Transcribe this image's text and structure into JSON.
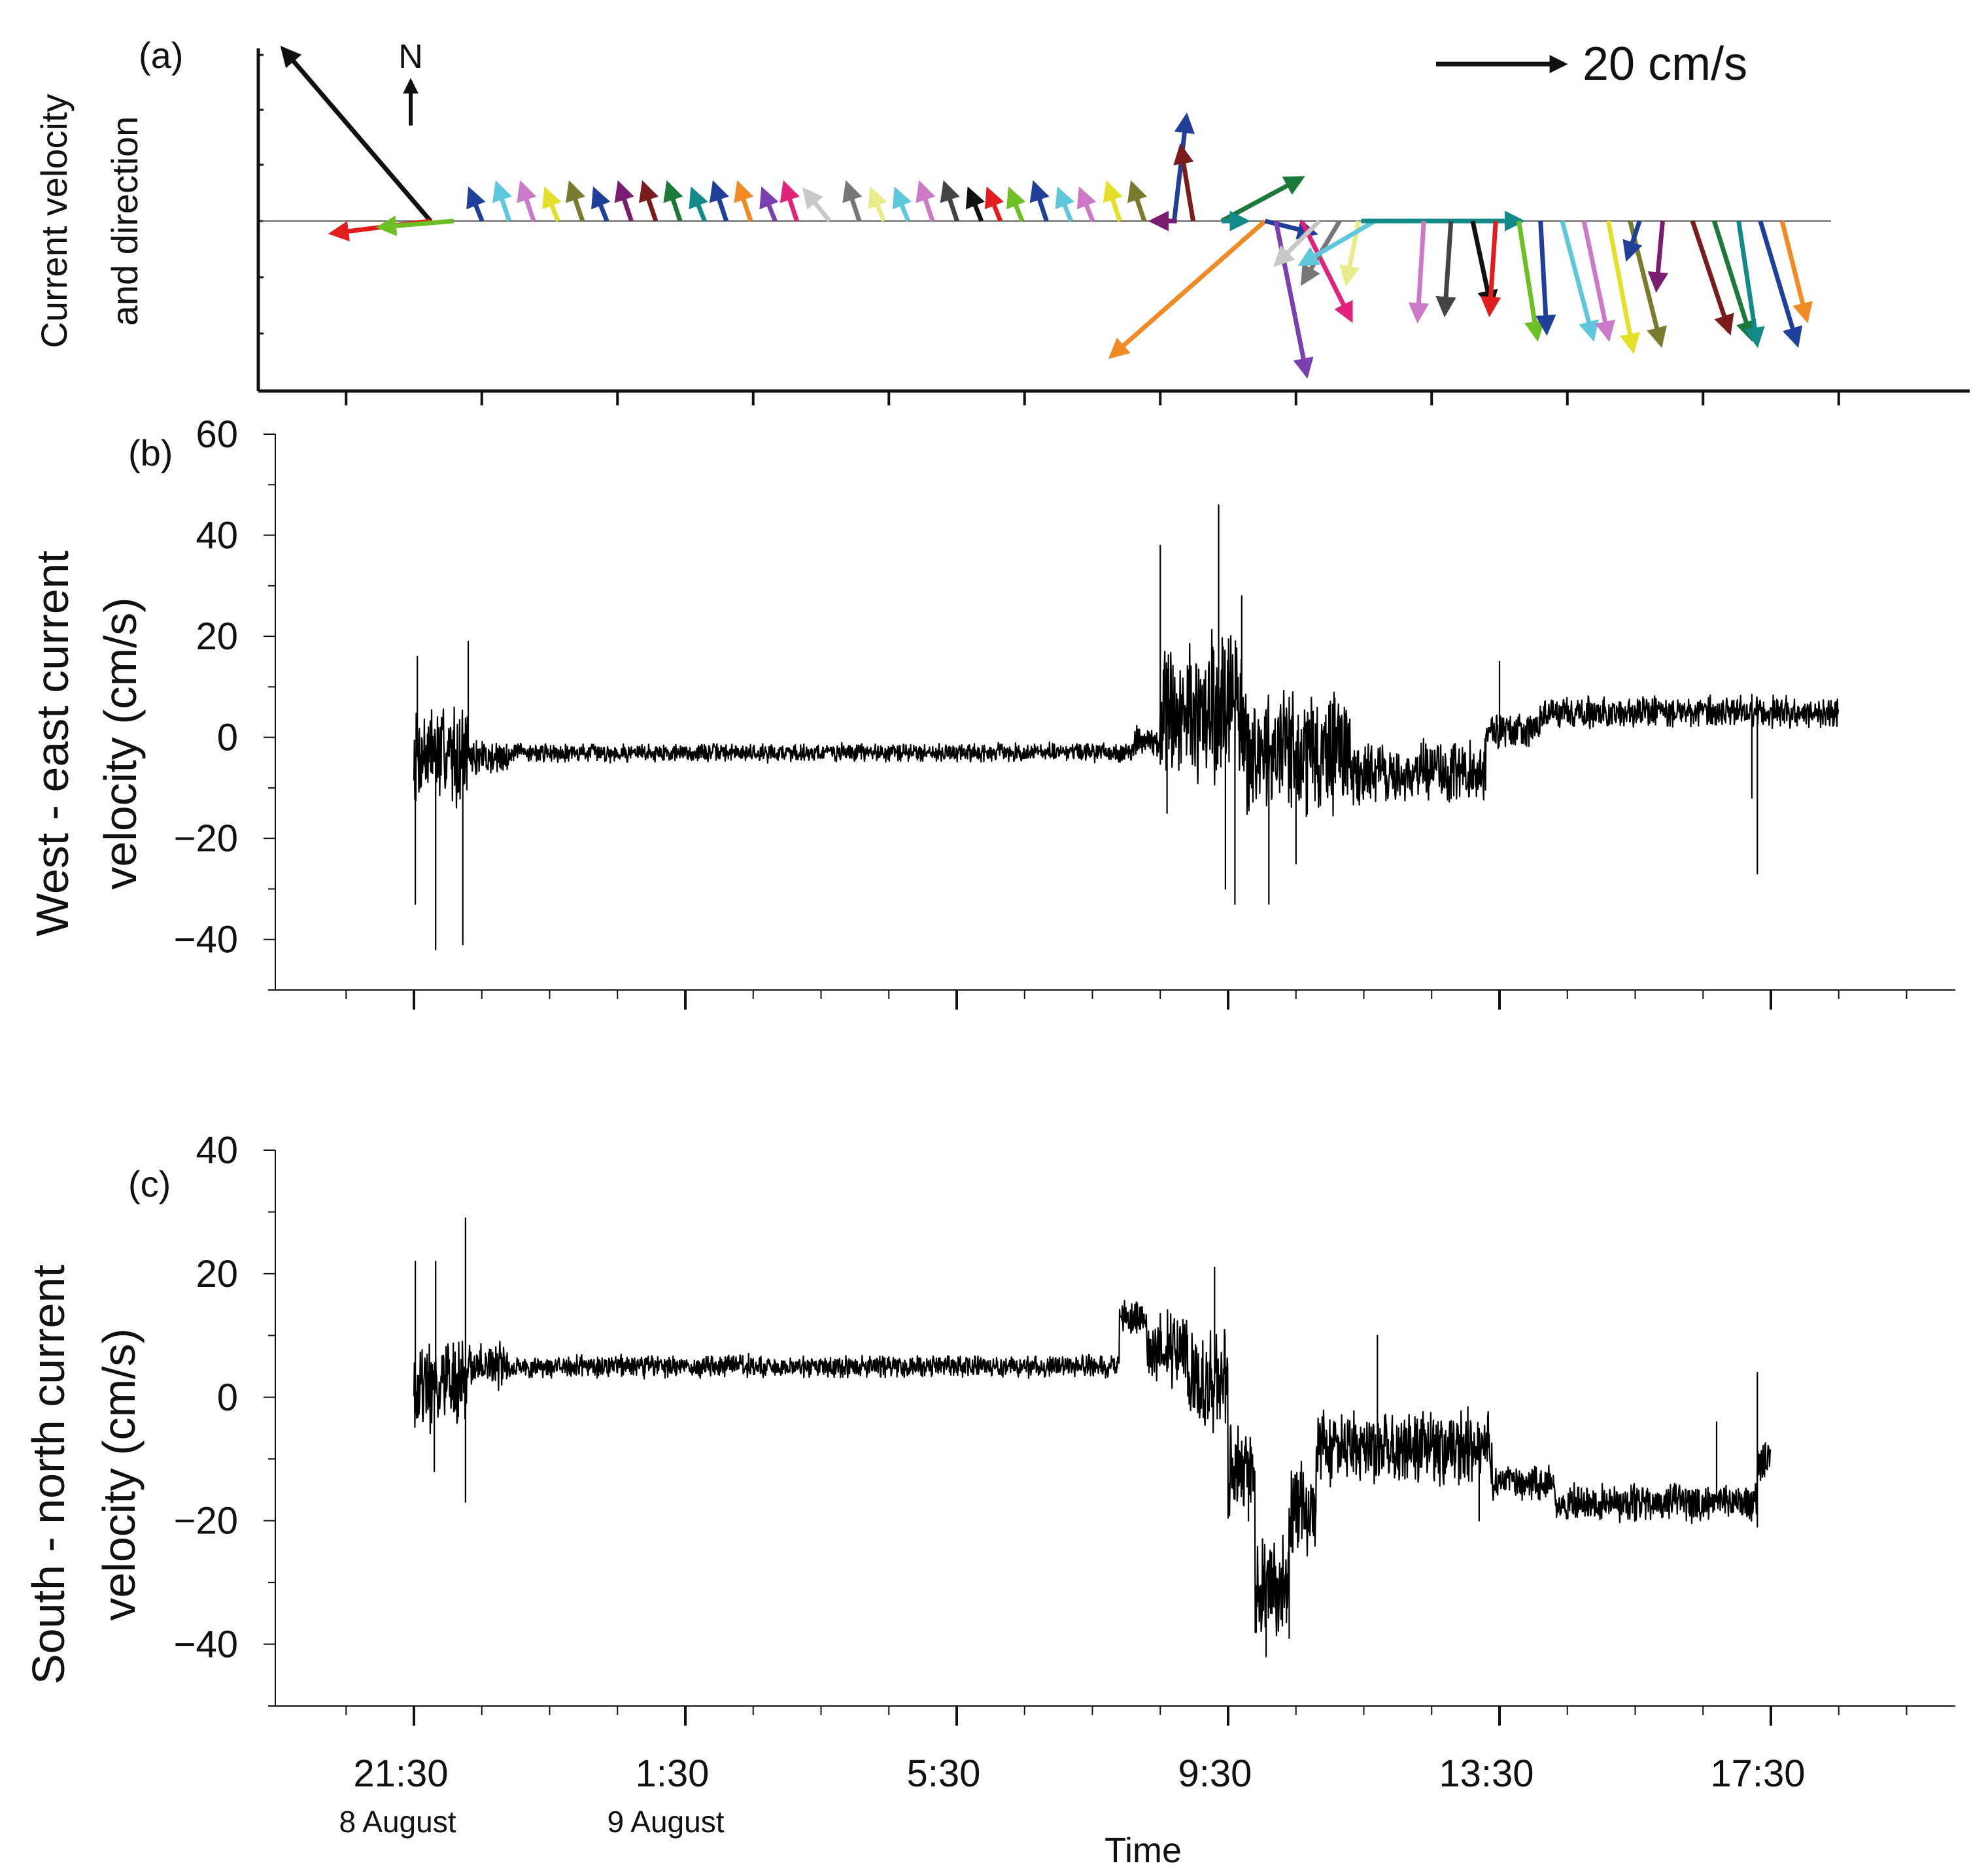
{
  "chart_data": [
    {
      "panel": "(a)",
      "type": "vector",
      "ylabel_lines": [
        "Current velocity",
        "and direction"
      ],
      "north_label": "N",
      "scale_label": "20 cm/s",
      "scale_value": 20,
      "vectors": [
        {
          "t": 0.1,
          "u": -24,
          "v": 28,
          "c": "#111111"
        },
        {
          "t": 0.1,
          "u": -16,
          "v": -2,
          "c": "#e11d1d"
        },
        {
          "t": 0.44,
          "u": -12,
          "v": -1,
          "c": "#6cc024"
        },
        {
          "t": 0.86,
          "u": -2,
          "v": 5,
          "c": "#1f3f99"
        },
        {
          "t": 1.26,
          "u": -2,
          "v": 6,
          "c": "#5fc7dc"
        },
        {
          "t": 1.62,
          "u": -2,
          "v": 6,
          "c": "#cc79c8"
        },
        {
          "t": 1.98,
          "u": -2,
          "v": 5,
          "c": "#e4e02a"
        },
        {
          "t": 2.34,
          "u": -2,
          "v": 6,
          "c": "#7b7b2f"
        },
        {
          "t": 2.7,
          "u": -2,
          "v": 5,
          "c": "#1f3f99"
        },
        {
          "t": 3.06,
          "u": -2,
          "v": 6,
          "c": "#7a1c6f"
        },
        {
          "t": 3.42,
          "u": -2,
          "v": 6,
          "c": "#7a1c1c"
        },
        {
          "t": 3.78,
          "u": -2,
          "v": 6,
          "c": "#1b7a3a"
        },
        {
          "t": 4.14,
          "u": -2,
          "v": 5,
          "c": "#138a8a"
        },
        {
          "t": 4.46,
          "u": -2,
          "v": 6,
          "c": "#1f3f99"
        },
        {
          "t": 4.82,
          "u": -2,
          "v": 6,
          "c": "#f08a24"
        },
        {
          "t": 5.18,
          "u": -2,
          "v": 5,
          "c": "#7b3fb0"
        },
        {
          "t": 5.5,
          "u": -2,
          "v": 6,
          "c": "#e2217a"
        },
        {
          "t": 5.98,
          "u": -4,
          "v": 5,
          "c": "#c8c8c8"
        },
        {
          "t": 6.42,
          "u": -2,
          "v": 6,
          "c": "#777777"
        },
        {
          "t": 6.78,
          "u": -2,
          "v": 5,
          "c": "#e8ec8a"
        },
        {
          "t": 7.14,
          "u": -2,
          "v": 5,
          "c": "#5fc7dc"
        },
        {
          "t": 7.5,
          "u": -2,
          "v": 6,
          "c": "#cc79c8"
        },
        {
          "t": 7.86,
          "u": -2,
          "v": 6,
          "c": "#444444"
        },
        {
          "t": 8.22,
          "u": -2,
          "v": 5,
          "c": "#111111"
        },
        {
          "t": 8.5,
          "u": -2,
          "v": 5,
          "c": "#e11d1d"
        },
        {
          "t": 8.82,
          "u": -2,
          "v": 5,
          "c": "#6cc024"
        },
        {
          "t": 9.18,
          "u": -2,
          "v": 6,
          "c": "#1f3f99"
        },
        {
          "t": 9.54,
          "u": -2,
          "v": 5,
          "c": "#5fc7dc"
        },
        {
          "t": 9.86,
          "u": -2,
          "v": 5,
          "c": "#cc79c8"
        },
        {
          "t": 10.26,
          "u": -2,
          "v": 6,
          "c": "#e4e02a"
        },
        {
          "t": 10.62,
          "u": -2,
          "v": 6,
          "c": "#7b7b2f"
        },
        {
          "t": 11.06,
          "u": 2,
          "v": 17,
          "c": "#1f3f99"
        },
        {
          "t": 11.1,
          "u": -4,
          "v": 0,
          "c": "#7a1c6f"
        },
        {
          "t": 11.34,
          "u": -2,
          "v": 12,
          "c": "#7a1c1c"
        },
        {
          "t": 11.76,
          "u": 13,
          "v": 7,
          "c": "#1b7a3a"
        },
        {
          "t": 11.76,
          "u": 4,
          "v": 0,
          "c": "#138a8a"
        },
        {
          "t": 12.4,
          "u": -25,
          "v": -22,
          "c": "#f08a24"
        },
        {
          "t": 12.4,
          "u": 8,
          "v": -2,
          "c": "#1f3f99"
        },
        {
          "t": 12.56,
          "u": 5,
          "v": -25,
          "c": "#7b3fb0"
        },
        {
          "t": 12.94,
          "u": 8,
          "v": -16,
          "c": "#e2217a"
        },
        {
          "t": 13.2,
          "u": -7,
          "v": -7,
          "c": "#c8c8c8"
        },
        {
          "t": 13.5,
          "u": -6,
          "v": -10,
          "c": "#777777"
        },
        {
          "t": 13.78,
          "u": -2,
          "v": -10,
          "c": "#e8ec8a"
        },
        {
          "t": 14.02,
          "u": -12,
          "v": -7,
          "c": "#5fc7dc"
        },
        {
          "t": 13.82,
          "u": 26,
          "v": 0,
          "c": "#138a8a"
        },
        {
          "t": 14.74,
          "u": -1,
          "v": -16,
          "c": "#cc79c8"
        },
        {
          "t": 15.14,
          "u": -1,
          "v": -15,
          "c": "#444444"
        },
        {
          "t": 15.46,
          "u": 3,
          "v": -14,
          "c": "#111111"
        },
        {
          "t": 15.8,
          "u": -1,
          "v": -15,
          "c": "#e11d1d"
        },
        {
          "t": 16.14,
          "u": 3,
          "v": -19,
          "c": "#6cc024"
        },
        {
          "t": 16.46,
          "u": 1,
          "v": -18,
          "c": "#1f3f99"
        },
        {
          "t": 16.78,
          "u": 5,
          "v": -19,
          "c": "#5fc7dc"
        },
        {
          "t": 17.1,
          "u": 4,
          "v": -19,
          "c": "#cc79c8"
        },
        {
          "t": 17.46,
          "u": 4,
          "v": -21,
          "c": "#e4e02a"
        },
        {
          "t": 17.78,
          "u": 5,
          "v": -20,
          "c": "#7b7b2f"
        },
        {
          "t": 17.92,
          "u": -2,
          "v": -6,
          "c": "#1f3f99"
        },
        {
          "t": 18.26,
          "u": -1,
          "v": -11,
          "c": "#7a1c6f"
        },
        {
          "t": 18.7,
          "u": 6,
          "v": -18,
          "c": "#7a1c1c"
        },
        {
          "t": 19.02,
          "u": 6,
          "v": -19,
          "c": "#1b7a3a"
        },
        {
          "t": 19.38,
          "u": 3,
          "v": -20,
          "c": "#138a8a"
        },
        {
          "t": 19.7,
          "u": 6,
          "v": -20,
          "c": "#1f3f99"
        },
        {
          "t": 20.02,
          "u": 4,
          "v": -16,
          "c": "#f08a24"
        }
      ]
    },
    {
      "panel": "(b)",
      "type": "line",
      "ylabel_lines": [
        "West - east current",
        "velocity (cm/s)"
      ],
      "ylim": [
        -50,
        60
      ],
      "yticks": [
        -40,
        -20,
        0,
        20,
        40,
        60
      ],
      "ytick_labels": [
        "−40",
        "−20",
        "0",
        "20",
        "40",
        "60"
      ],
      "segments": [
        {
          "t0": 0.0,
          "t1": 0.8,
          "base": -3,
          "noise": 8
        },
        {
          "t0": 0.8,
          "t1": 1.4,
          "base": -4,
          "noise": 3
        },
        {
          "t0": 1.4,
          "t1": 10.6,
          "base": -3,
          "noise": 1.5
        },
        {
          "t0": 10.6,
          "t1": 11.0,
          "base": -1,
          "noise": 2.5
        },
        {
          "t0": 11.0,
          "t1": 12.2,
          "base": 5,
          "noise": 12
        },
        {
          "t0": 12.2,
          "t1": 13.8,
          "base": -3,
          "noise": 10
        },
        {
          "t0": 13.8,
          "t1": 15.8,
          "base": -7,
          "noise": 5
        },
        {
          "t0": 15.8,
          "t1": 16.6,
          "base": 1,
          "noise": 3
        },
        {
          "t0": 16.6,
          "t1": 21.0,
          "base": 5,
          "noise": 2.5
        }
      ],
      "spikes": [
        {
          "t": 0.02,
          "v": -33
        },
        {
          "t": 0.05,
          "v": 16
        },
        {
          "t": 0.32,
          "v": -42
        },
        {
          "t": 0.72,
          "v": -41
        },
        {
          "t": 0.8,
          "v": 19
        },
        {
          "t": 11.0,
          "v": 38
        },
        {
          "t": 11.1,
          "v": -15
        },
        {
          "t": 11.86,
          "v": 46
        },
        {
          "t": 11.96,
          "v": -30
        },
        {
          "t": 12.1,
          "v": -33
        },
        {
          "t": 12.2,
          "v": 28
        },
        {
          "t": 12.6,
          "v": -33
        },
        {
          "t": 13.0,
          "v": -25
        },
        {
          "t": 14.1,
          "v": -12
        },
        {
          "t": 16.0,
          "v": 15
        },
        {
          "t": 19.8,
          "v": -27
        },
        {
          "t": 19.72,
          "v": -12
        }
      ]
    },
    {
      "panel": "(c)",
      "type": "line",
      "ylabel_lines": [
        "South - north current",
        "velocity (cm/s)"
      ],
      "ylim": [
        -50,
        40
      ],
      "yticks": [
        -40,
        -20,
        0,
        20,
        40
      ],
      "ytick_labels": [
        "−40",
        "−20",
        "0",
        "20",
        "40"
      ],
      "xlabel": "Time",
      "xtick_labels": [
        "21:30",
        "1:30",
        "5:30",
        "9:30",
        "13:30",
        "17:30"
      ],
      "date_labels": [
        "8 August",
        "9 August"
      ],
      "segments": [
        {
          "t0": 0.0,
          "t1": 0.8,
          "base": 2,
          "noise": 6
        },
        {
          "t0": 0.8,
          "t1": 1.4,
          "base": 5,
          "noise": 3
        },
        {
          "t0": 1.4,
          "t1": 10.4,
          "base": 5,
          "noise": 1.5
        },
        {
          "t0": 10.4,
          "t1": 10.8,
          "base": 13,
          "noise": 2.5
        },
        {
          "t0": 10.8,
          "t1": 11.4,
          "base": 8,
          "noise": 5
        },
        {
          "t0": 11.4,
          "t1": 12.0,
          "base": 3,
          "noise": 7
        },
        {
          "t0": 12.0,
          "t1": 12.4,
          "base": -12,
          "noise": 6
        },
        {
          "t0": 12.4,
          "t1": 12.9,
          "base": -30,
          "noise": 7
        },
        {
          "t0": 12.9,
          "t1": 13.3,
          "base": -18,
          "noise": 6
        },
        {
          "t0": 13.3,
          "t1": 15.9,
          "base": -8,
          "noise": 5
        },
        {
          "t0": 15.9,
          "t1": 16.8,
          "base": -14,
          "noise": 2.5
        },
        {
          "t0": 16.8,
          "t1": 19.8,
          "base": -17,
          "noise": 2.5
        },
        {
          "t0": 19.8,
          "t1": 20.0,
          "base": -10,
          "noise": 3
        }
      ],
      "spikes": [
        {
          "t": 0.02,
          "v": 22
        },
        {
          "t": 0.32,
          "v": 22
        },
        {
          "t": 0.76,
          "v": 29
        },
        {
          "t": 0.76,
          "v": -17
        },
        {
          "t": 0.3,
          "v": -12
        },
        {
          "t": 11.8,
          "v": 21
        },
        {
          "t": 12.3,
          "v": -20
        },
        {
          "t": 12.56,
          "v": -42
        },
        {
          "t": 12.9,
          "v": -39
        },
        {
          "t": 14.2,
          "v": 10
        },
        {
          "t": 15.7,
          "v": -20
        },
        {
          "t": 19.2,
          "v": -4
        },
        {
          "t": 19.8,
          "v": 4
        },
        {
          "t": 19.8,
          "v": -21
        }
      ]
    }
  ]
}
